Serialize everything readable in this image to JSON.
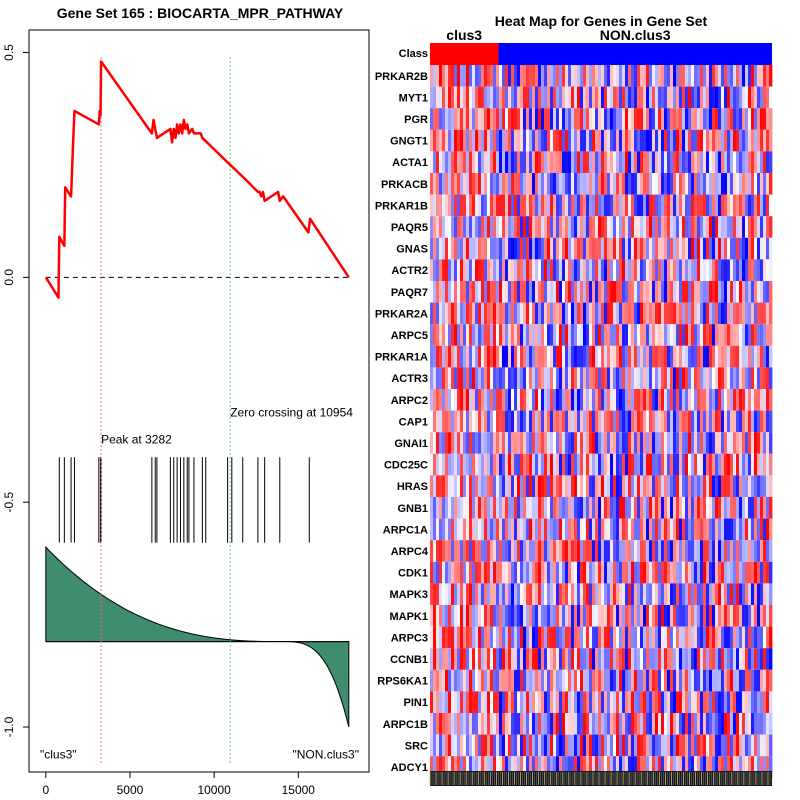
{
  "chart_data": [
    {
      "type": "line",
      "title": "Gene Set  165 : BIOCARTA_MPR_PATHWAY",
      "xlim": [
        -1000,
        19200
      ],
      "ylim": [
        -1.1,
        0.55
      ],
      "x_ticks": [
        0,
        5000,
        10000,
        15000
      ],
      "x_tick_labels": [
        "0",
        "5000",
        "10000",
        "15000"
      ],
      "y_ticks": [
        0.5,
        0.0,
        -0.5,
        -1.0
      ],
      "y_tick_labels": [
        "0.5",
        "0.0",
        "-0.5",
        "-1.0"
      ],
      "enrichment_score": {
        "x": [
          0,
          750,
          800,
          1100,
          1150,
          1500,
          1600,
          1700,
          3150,
          3200,
          3250,
          3282,
          6300,
          6400,
          6500,
          6600,
          7400,
          7500,
          7600,
          7700,
          7800,
          7900,
          8000,
          8100,
          8200,
          8300,
          8400,
          8500,
          8700,
          8800,
          9200,
          9300,
          10954,
          11800,
          12600,
          12700,
          12800,
          12900,
          13000,
          13800,
          13900,
          14100,
          15600,
          15700,
          18000
        ],
        "y": [
          0.0,
          -0.045,
          0.09,
          0.07,
          0.2,
          0.18,
          0.28,
          0.37,
          0.34,
          0.37,
          0.36,
          0.48,
          0.32,
          0.35,
          0.33,
          0.31,
          0.33,
          0.3,
          0.33,
          0.31,
          0.34,
          0.32,
          0.34,
          0.32,
          0.35,
          0.33,
          0.34,
          0.32,
          0.33,
          0.32,
          0.32,
          0.31,
          0.25,
          0.22,
          0.19,
          0.19,
          0.18,
          0.19,
          0.17,
          0.19,
          0.17,
          0.18,
          0.1,
          0.13,
          0.0
        ],
        "color": "#ff0000"
      },
      "hit_positions": [
        800,
        1100,
        1500,
        1700,
        3150,
        3250,
        3282,
        6300,
        6500,
        6600,
        7400,
        7600,
        7800,
        8000,
        8200,
        8400,
        8500,
        8800,
        9300,
        9500,
        10800,
        11050,
        11700,
        12600,
        13000,
        13900,
        15650
      ],
      "peak": {
        "x": 3282,
        "label": "Peak at 3282",
        "color": "#ff6666"
      },
      "zero_crossing": {
        "x": 10954,
        "label": "Zero crossing at 10954",
        "color": "#66cc66"
      },
      "baseline_y": 0.0,
      "ranked_metric": {
        "baseline": -0.81,
        "start": -0.6,
        "end": -1.0,
        "color": "#3f8c6e"
      },
      "left_annotation": "\"clus3\"",
      "right_annotation": "\"NON.clus3\""
    },
    {
      "type": "heatmap",
      "title": "Heat Map for Genes in Gene Set",
      "row_header": "Class",
      "classes": [
        {
          "name": "clus3",
          "color": "#ff0000",
          "fraction": 0.2
        },
        {
          "name": "NON.clus3",
          "color": "#0000ff",
          "fraction": 0.8
        }
      ],
      "genes": [
        "PRKAR2B",
        "MYT1",
        "PGR",
        "GNGT1",
        "ACTA1",
        "PRKACB",
        "PRKAR1B",
        "PAQR5",
        "GNAS",
        "ACTR2",
        "PAQR7",
        "PRKAR2A",
        "ARPC5",
        "PRKAR1A",
        "ACTR3",
        "ARPC2",
        "CAP1",
        "GNAI1",
        "CDC25C",
        "HRAS",
        "GNB1",
        "ARPC1A",
        "ARPC4",
        "CDK1",
        "MAPK3",
        "MAPK1",
        "ARPC3",
        "CCNB1",
        "RPS6KA1",
        "PIN1",
        "ARPC1B",
        "SRC",
        "ADCY1"
      ],
      "color_scale": [
        "#0000ff",
        "#ffffff",
        "#ff0000"
      ]
    }
  ]
}
